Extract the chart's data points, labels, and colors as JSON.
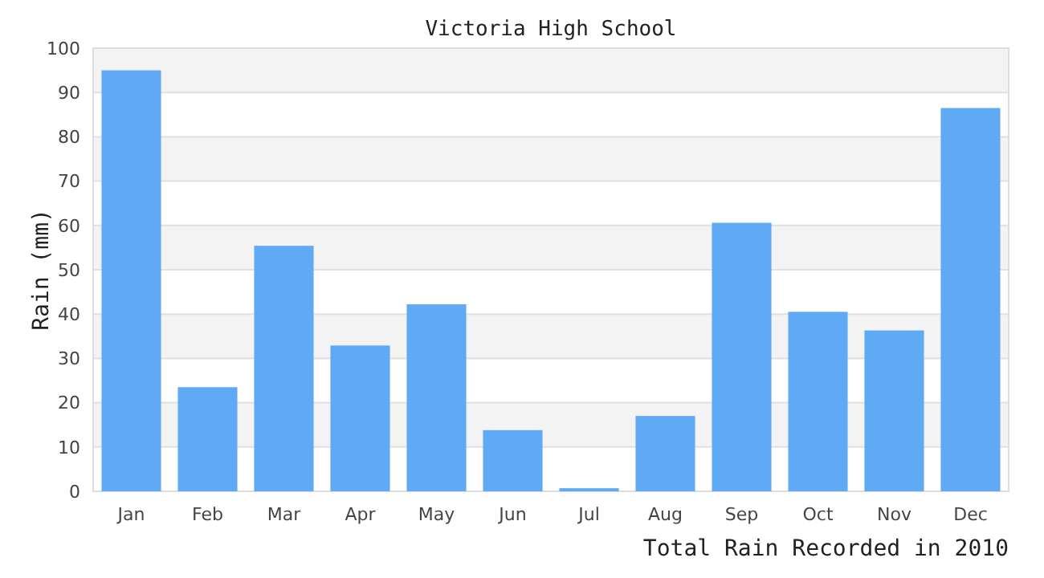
{
  "chart_data": {
    "type": "bar",
    "title": "Victoria High School",
    "xlabel": "Total Rain Recorded in 2010",
    "ylabel": "Rain (mm)",
    "categories": [
      "Jan",
      "Feb",
      "Mar",
      "Apr",
      "May",
      "Jun",
      "Jul",
      "Aug",
      "Sep",
      "Oct",
      "Nov",
      "Dec"
    ],
    "values": [
      95,
      23.5,
      55.4,
      32.9,
      42.2,
      13.8,
      0.7,
      17,
      60.6,
      40.5,
      36.3,
      86.5
    ],
    "color": "#60a9f5",
    "ylim": [
      0,
      100
    ],
    "yticks": [
      0,
      10,
      20,
      30,
      40,
      50,
      60,
      70,
      80,
      90,
      100
    ],
    "grid": true
  }
}
